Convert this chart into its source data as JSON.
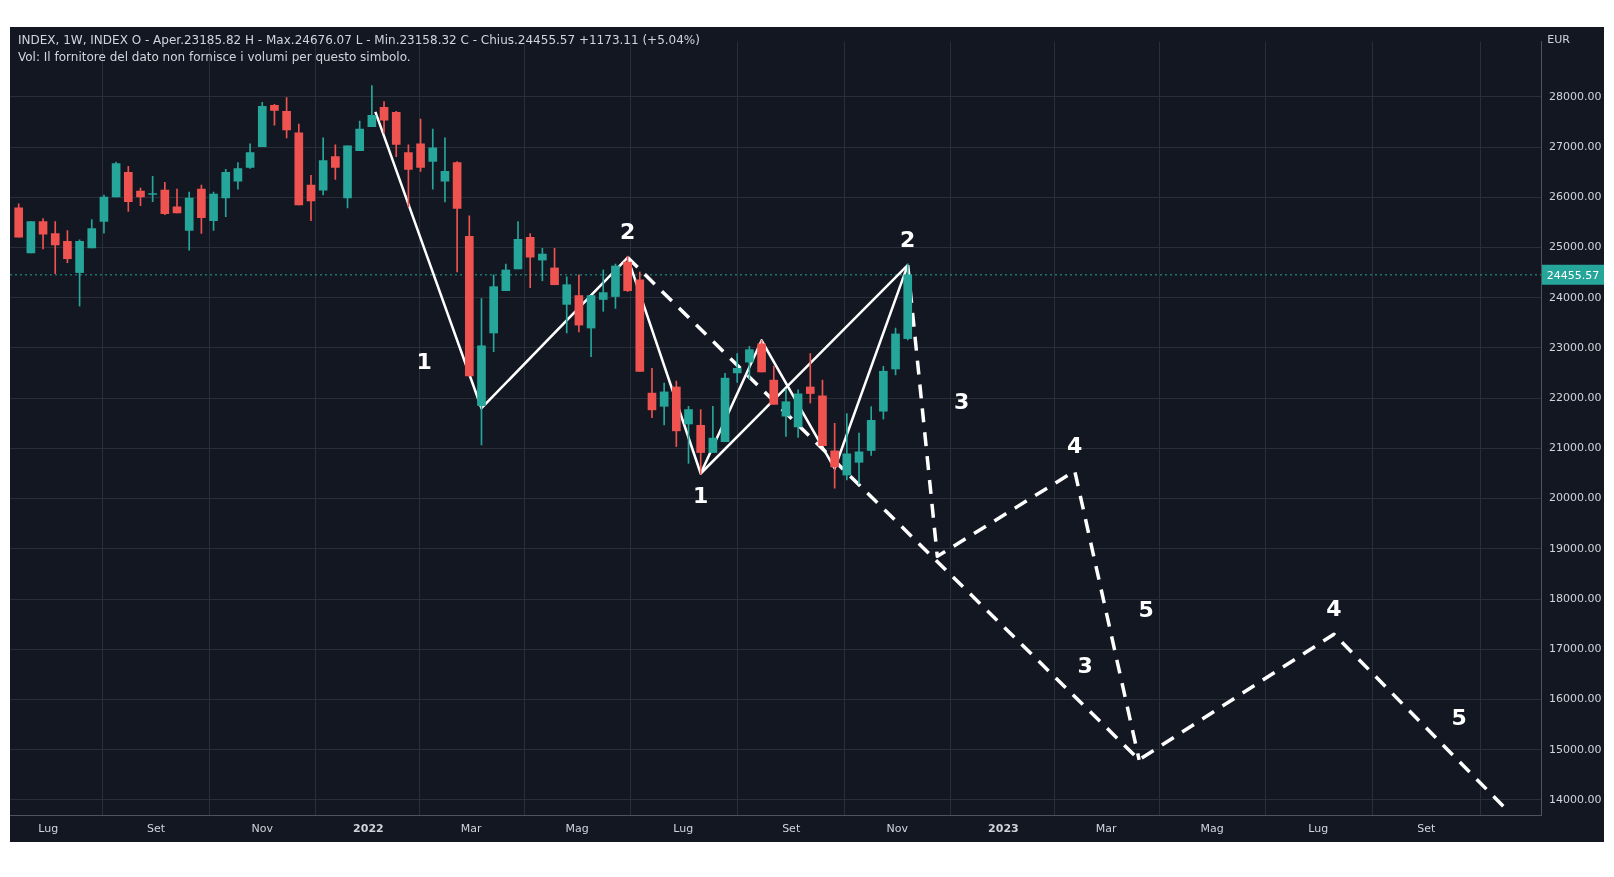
{
  "chart_data": {
    "type": "candlestick",
    "title": "INDEX, 1W, INDEX  O - Aper.23185.82  H - Max.24676.07  L - Min.23158.32  C - Chius.24455.57  +1173.11 (+5.04%)",
    "subtitle": "Vol: Il fornitore del dato non fornisce i volumi per questo simbolo.",
    "ylabel": "EUR",
    "x": [
      "2021-06-14",
      "2021-06-21",
      "2021-06-28",
      "2021-07-05",
      "2021-07-12",
      "2021-07-19",
      "2021-07-26",
      "2021-08-02",
      "2021-08-09",
      "2021-08-16",
      "2021-08-23",
      "2021-08-30",
      "2021-09-06",
      "2021-09-13",
      "2021-09-20",
      "2021-09-27",
      "2021-10-04",
      "2021-10-11",
      "2021-10-18",
      "2021-10-25",
      "2021-11-01",
      "2021-11-08",
      "2021-11-15",
      "2021-11-22",
      "2021-11-29",
      "2021-12-06",
      "2021-12-13",
      "2021-12-20",
      "2021-12-27",
      "2022-01-03",
      "2022-01-10",
      "2022-01-17",
      "2022-01-24",
      "2022-01-31",
      "2022-02-07",
      "2022-02-14",
      "2022-02-21",
      "2022-02-28",
      "2022-03-07",
      "2022-03-14",
      "2022-03-21",
      "2022-03-28",
      "2022-04-04",
      "2022-04-11",
      "2022-04-18",
      "2022-04-25",
      "2022-05-02",
      "2022-05-09",
      "2022-05-16",
      "2022-05-23",
      "2022-05-30",
      "2022-06-06",
      "2022-06-13",
      "2022-06-20",
      "2022-06-27",
      "2022-07-04",
      "2022-07-11",
      "2022-07-18",
      "2022-07-25",
      "2022-08-01",
      "2022-08-08",
      "2022-08-15",
      "2022-08-22",
      "2022-08-29",
      "2022-09-05",
      "2022-09-12",
      "2022-09-19",
      "2022-09-26",
      "2022-10-03",
      "2022-10-10",
      "2022-10-17",
      "2022-10-24",
      "2022-10-31",
      "2022-11-07"
    ],
    "ohlc": [
      [
        25790,
        25868,
        25207,
        25207
      ],
      [
        24894,
        25515,
        24894,
        25515
      ],
      [
        25515,
        25574,
        24972,
        25266
      ],
      [
        25279,
        25515,
        24481,
        25050
      ],
      [
        25122,
        25338,
        24697,
        24776
      ],
      [
        24501,
        25155,
        23834,
        25122
      ],
      [
        24992,
        25554,
        24992,
        25377
      ],
      [
        25521,
        26045,
        25286,
        26005
      ],
      [
        26005,
        26699,
        26005,
        26672
      ],
      [
        26496,
        26614,
        25718,
        25914
      ],
      [
        26123,
        26182,
        25835,
        26005
      ],
      [
        26055,
        26417,
        25914,
        26060
      ],
      [
        26143,
        26300,
        25652,
        25672
      ],
      [
        25809,
        26162,
        25691,
        25691
      ],
      [
        25338,
        26103,
        24946,
        25986
      ],
      [
        26162,
        26241,
        25279,
        25593
      ],
      [
        25534,
        26103,
        25338,
        26064
      ],
      [
        25986,
        26555,
        25613,
        26496
      ],
      [
        26319,
        26692,
        26162,
        26574
      ],
      [
        26594,
        27065,
        26574,
        26888
      ],
      [
        27006,
        27889,
        27006,
        27810
      ],
      [
        27830,
        27850,
        27438,
        27732
      ],
      [
        27712,
        27987,
        27183,
        27339
      ],
      [
        27281,
        27457,
        25848,
        25848
      ],
      [
        26241,
        26437,
        25534,
        25927
      ],
      [
        26143,
        27183,
        26045,
        26731
      ],
      [
        26810,
        27045,
        26358,
        26594
      ],
      [
        25986,
        27026,
        25789,
        27026
      ],
      [
        26927,
        27516,
        26927,
        27359
      ],
      [
        27405,
        28222,
        27405,
        27634
      ],
      [
        27791,
        27908,
        27281,
        27536
      ],
      [
        27693,
        27712,
        26810,
        27052
      ],
      [
        26888,
        27045,
        25809,
        26555
      ],
      [
        27065,
        27555,
        26515,
        26594
      ],
      [
        26712,
        27359,
        26162,
        26986
      ],
      [
        26319,
        27183,
        25907,
        26515
      ],
      [
        26692,
        26712,
        24514,
        25776
      ],
      [
        25221,
        25632,
        22441,
        22441
      ],
      [
        21852,
        23984,
        21068,
        23043
      ],
      [
        23298,
        24455,
        22925,
        24220
      ],
      [
        24141,
        24671,
        24141,
        24553
      ],
      [
        24573,
        25515,
        24573,
        25162
      ],
      [
        25201,
        25279,
        24200,
        24808
      ],
      [
        24750,
        24985,
        24338,
        24867
      ],
      [
        24593,
        24985,
        24259,
        24259
      ],
      [
        23867,
        24416,
        23298,
        24259
      ],
      [
        24043,
        24455,
        23317,
        23455
      ],
      [
        23396,
        24043,
        22827,
        24043
      ],
      [
        23965,
        24553,
        23729,
        24102
      ],
      [
        24024,
        24671,
        23788,
        24632
      ],
      [
        24710,
        24828,
        24122,
        24141
      ],
      [
        24357,
        24514,
        22533,
        22533
      ],
      [
        22101,
        22592,
        21610,
        21767
      ],
      [
        21838,
        22301,
        21466,
        22125
      ],
      [
        22223,
        22340,
        21036,
        21349
      ],
      [
        21486,
        21838,
        20703,
        21773
      ],
      [
        21460,
        21773,
        20488,
        20918
      ],
      [
        20918,
        21838,
        20918,
        21205
      ],
      [
        21134,
        22496,
        21134,
        22399
      ],
      [
        22503,
        22888,
        22314,
        22594
      ],
      [
        22718,
        23031,
        22379,
        22966
      ],
      [
        23083,
        23148,
        22522,
        22522
      ],
      [
        22359,
        22640,
        21877,
        21877
      ],
      [
        21642,
        22183,
        21238,
        21929
      ],
      [
        21427,
        22164,
        21218,
        22086
      ],
      [
        22223,
        22888,
        21903,
        22092
      ],
      [
        22046,
        22359,
        21055,
        21055
      ],
      [
        20951,
        21499,
        20208,
        20632
      ],
      [
        20469,
        21694,
        20371,
        20892
      ],
      [
        20723,
        21303,
        20293,
        20931
      ],
      [
        20958,
        21831,
        20860,
        21558
      ],
      [
        21740,
        22633,
        21583,
        22536
      ],
      [
        22581,
        23396,
        22464,
        23279
      ],
      [
        23185.82,
        24676.07,
        23158.32,
        24455.57
      ]
    ],
    "series": [
      {
        "type": "line",
        "color": "#ffffff",
        "line_style": "solid",
        "x": [
          "2022-01-05",
          "2022-03-07",
          "2022-05-30",
          "2022-07-11",
          "2022-11-07"
        ],
        "values": [
          27700,
          21800,
          24800,
          20500,
          24650
        ]
      },
      {
        "type": "line",
        "color": "#ffffff",
        "line_style": "solid",
        "x": [
          "2022-07-11",
          "2022-08-15",
          "2022-09-26",
          "2022-11-07"
        ],
        "values": [
          20500,
          23150,
          20600,
          24650
        ]
      },
      {
        "type": "line",
        "color": "#ffffff",
        "line_style": "dashed",
        "x": [
          "2022-05-30",
          "2023-03-20",
          "2023-07-10",
          "2023-10-16"
        ],
        "values": [
          24800,
          14800,
          17300,
          13850
        ]
      },
      {
        "type": "line",
        "color": "#ffffff",
        "line_style": "dashed",
        "x": [
          "2022-11-07",
          "2022-11-24",
          "2023-02-11",
          "2023-03-20"
        ],
        "values": [
          24650,
          18850,
          20550,
          14800
        ]
      }
    ],
    "annotations": [
      {
        "text": "1",
        "x": "2022-02-25",
        "y": 22700
      },
      {
        "text": "2",
        "x": "2022-05-30",
        "y": 24800
      },
      {
        "text": "1",
        "x": "2022-07-11",
        "y": 20500
      },
      {
        "text": "2",
        "x": "2022-11-07",
        "y": 24650
      },
      {
        "text": "3",
        "x": "2022-11-15",
        "y": 21900
      },
      {
        "text": "4",
        "x": "2023-02-11",
        "y": 20550
      },
      {
        "text": "5",
        "x": "2023-03-01",
        "y": 17750
      },
      {
        "text": "3",
        "x": "2023-01-25",
        "y": 16650
      },
      {
        "text": "4",
        "x": "2023-07-10",
        "y": 17300
      },
      {
        "text": "5",
        "x": "2023-08-28",
        "y": 15600
      }
    ],
    "ref_lines": [
      {
        "axis": "y",
        "value": 24455.57,
        "label": "24455.57",
        "color": "#26a69a",
        "line_style": "dotted"
      }
    ],
    "xlim": [
      "2021-06-09",
      "2023-11-06"
    ],
    "xticks": [
      {
        "value": "2021-07-01",
        "label": "Lug"
      },
      {
        "value": "2021-09-01",
        "label": "Set"
      },
      {
        "value": "2021-11-01",
        "label": "Nov"
      },
      {
        "value": "2022-01-01",
        "label": "2022"
      },
      {
        "value": "2022-03-01",
        "label": "Mar"
      },
      {
        "value": "2022-05-01",
        "label": "Mag"
      },
      {
        "value": "2022-07-01",
        "label": "Lug"
      },
      {
        "value": "2022-09-01",
        "label": "Set"
      },
      {
        "value": "2022-11-01",
        "label": "Nov"
      },
      {
        "value": "2023-01-01",
        "label": "2023"
      },
      {
        "value": "2023-03-01",
        "label": "Mar"
      },
      {
        "value": "2023-05-01",
        "label": "Mag"
      },
      {
        "value": "2023-07-01",
        "label": "Lug"
      },
      {
        "value": "2023-09-01",
        "label": "Set"
      }
    ],
    "ylim": [
      13700,
      29100
    ],
    "yticks": [
      {
        "value": 14000,
        "label": "14000.00"
      },
      {
        "value": 15000,
        "label": "15000.00"
      },
      {
        "value": 16000,
        "label": "16000.00"
      },
      {
        "value": 17000,
        "label": "17000.00"
      },
      {
        "value": 18000,
        "label": "18000.00"
      },
      {
        "value": 19000,
        "label": "19000.00"
      },
      {
        "value": 20000,
        "label": "20000.00"
      },
      {
        "value": 21000,
        "label": "21000.00"
      },
      {
        "value": 22000,
        "label": "22000.00"
      },
      {
        "value": 23000,
        "label": "23000.00"
      },
      {
        "value": 24000,
        "label": "24000.00"
      },
      {
        "value": 25000,
        "label": "25000.00"
      },
      {
        "value": 26000,
        "label": "26000.00"
      },
      {
        "value": 27000,
        "label": "27000.00"
      },
      {
        "value": 28000,
        "label": "28000.00"
      }
    ],
    "grid": true,
    "legend": false
  }
}
